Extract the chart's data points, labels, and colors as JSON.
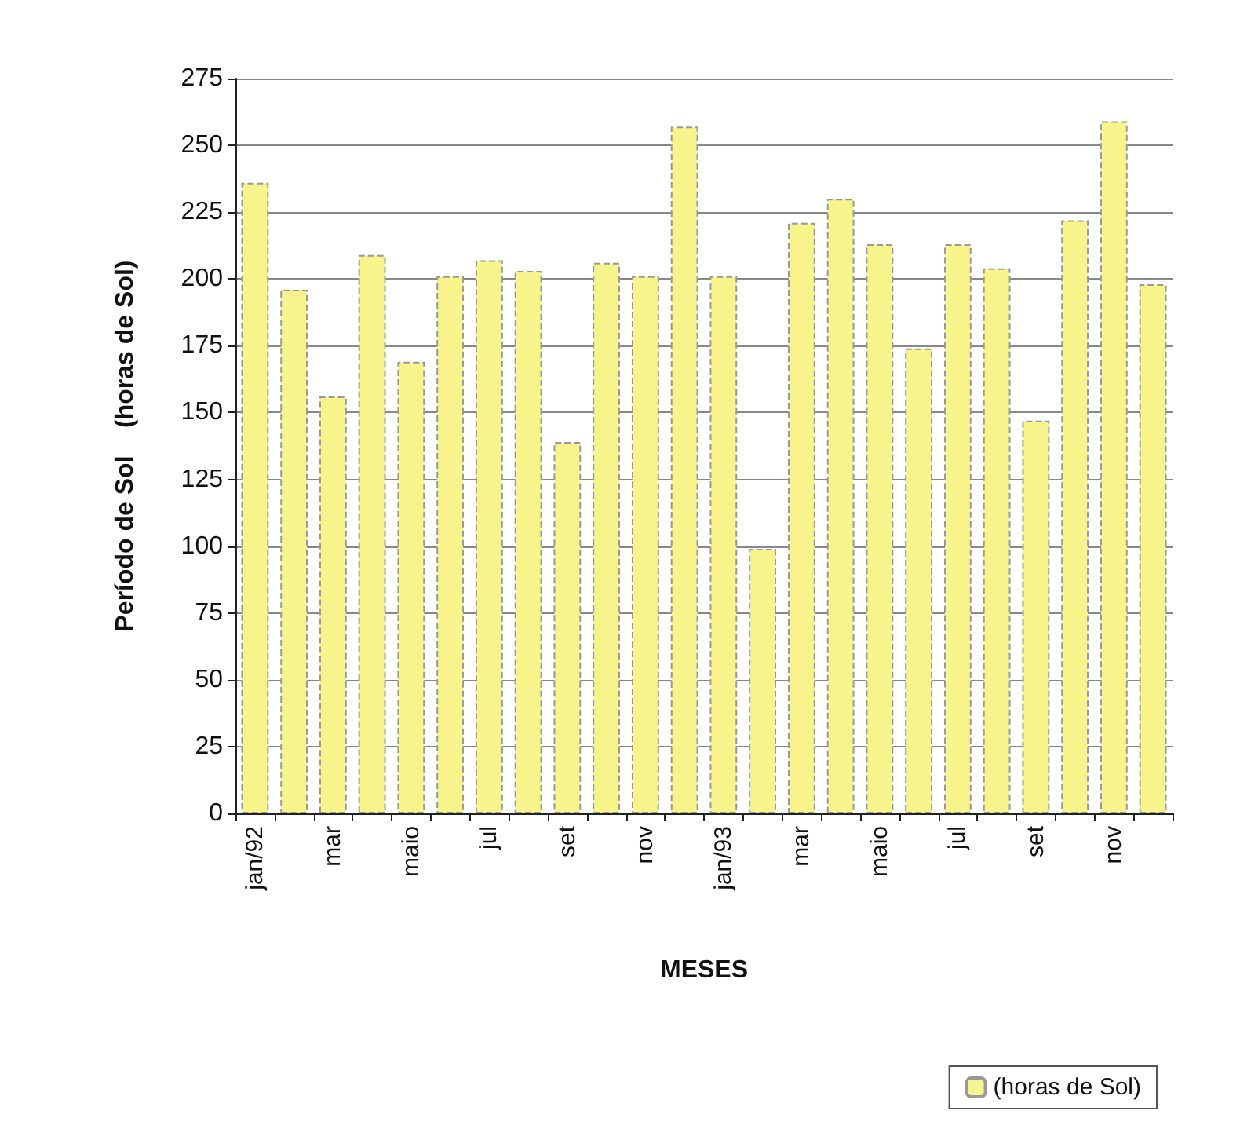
{
  "chart_data": {
    "type": "bar",
    "xlabel": "MESES",
    "ylabel": "Período de Sol    (horas de Sol)",
    "categories": [
      "jan/92",
      null,
      "mar",
      null,
      "maio",
      null,
      "jul",
      null,
      "set",
      null,
      "nov",
      null,
      "jan/93",
      null,
      "mar",
      null,
      "maio",
      null,
      "jul",
      null,
      "set",
      null,
      "nov",
      null
    ],
    "series": [
      {
        "name": "(horas de Sol)",
        "color": "#f8f48c",
        "values": [
          236,
          196,
          156,
          209,
          169,
          201,
          207,
          203,
          139,
          206,
          201,
          257,
          201,
          99,
          221,
          230,
          213,
          174,
          213,
          204,
          147,
          222,
          259,
          198
        ]
      }
    ],
    "ylim": [
      0,
      275
    ],
    "yticks": [
      0,
      25,
      50,
      75,
      100,
      125,
      150,
      175,
      200,
      225,
      250,
      275
    ],
    "grid": "y",
    "legend": "bottom right"
  }
}
